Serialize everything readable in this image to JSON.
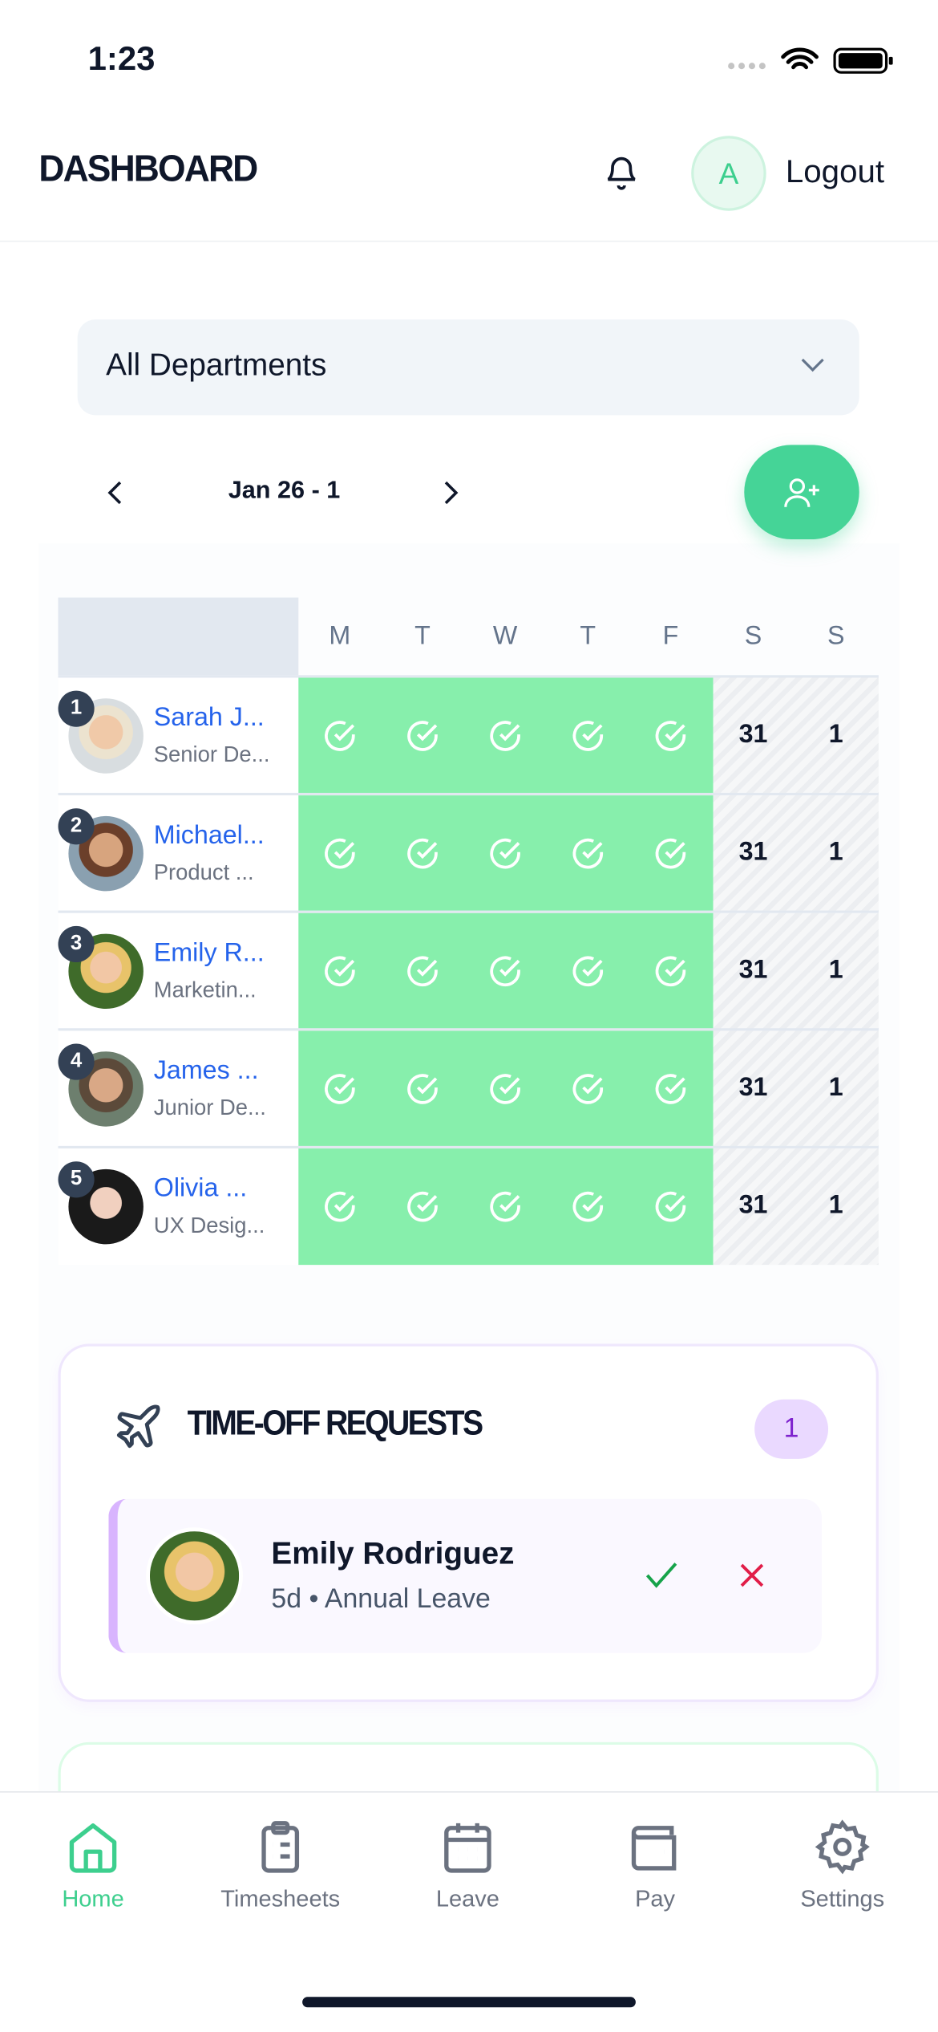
{
  "status_bar": {
    "time": "1:23"
  },
  "header": {
    "title": "DASHBOARD",
    "avatar_initial": "A",
    "logout_label": "Logout"
  },
  "filter": {
    "department": "All Departments"
  },
  "week": {
    "range": "Jan 26 - 1"
  },
  "schedule": {
    "days": [
      "M",
      "T",
      "W",
      "T",
      "F",
      "S",
      "S"
    ],
    "weekend_dates": [
      "31",
      "1"
    ],
    "employees": [
      {
        "rank": "1",
        "name": "Sarah J...",
        "role": "Senior De..."
      },
      {
        "rank": "2",
        "name": "Michael...",
        "role": "Product ..."
      },
      {
        "rank": "3",
        "name": "Emily R...",
        "role": "Marketin..."
      },
      {
        "rank": "4",
        "name": "James ...",
        "role": "Junior De..."
      },
      {
        "rank": "5",
        "name": "Olivia ...",
        "role": "UX Desig..."
      }
    ]
  },
  "time_off": {
    "title": "TIME-OFF REQUESTS",
    "count": "1",
    "requests": [
      {
        "name": "Emily Rodriguez",
        "detail": "5d • Annual Leave"
      }
    ]
  },
  "bottom_nav": {
    "items": [
      {
        "label": "Home",
        "active": true
      },
      {
        "label": "Timesheets"
      },
      {
        "label": "Leave"
      },
      {
        "label": "Pay"
      },
      {
        "label": "Settings"
      }
    ]
  },
  "colors": {
    "accent": "#45d497",
    "present": "#87efac",
    "name_link": "#2563eb",
    "badge_bg": "#ead9ff",
    "approve": "#16a34a",
    "reject": "#e11d48"
  }
}
